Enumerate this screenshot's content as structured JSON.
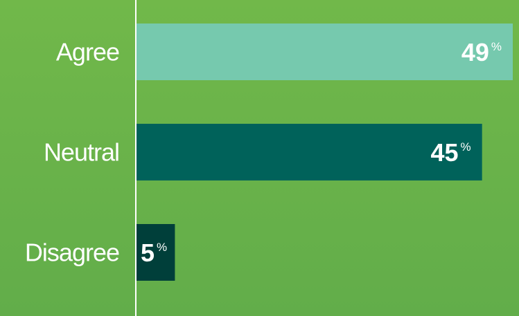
{
  "chart_data": {
    "type": "bar",
    "orientation": "horizontal",
    "categories": [
      "Agree",
      "Neutral",
      "Disagree"
    ],
    "values": [
      49,
      45,
      5
    ],
    "unit": "%",
    "colors": [
      "#76c9ae",
      "#00625a",
      "#003f3a"
    ],
    "xlim": [
      0,
      49
    ],
    "title": "",
    "xlabel": "",
    "ylabel": "",
    "grid": false,
    "legend": "none"
  }
}
